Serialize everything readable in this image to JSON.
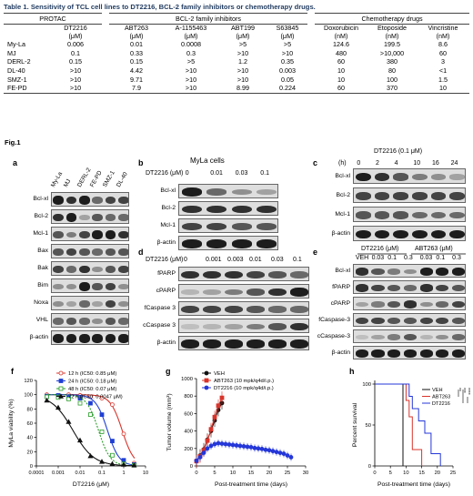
{
  "table": {
    "caption": "Table 1. Sensitivity of TCL cell lines to DT2216, BCL-2 family inhibitors or chemotherapy drugs.",
    "groups": [
      "PROTAC",
      "BCL-2 family inhibitors",
      "Chemotherapy drugs"
    ],
    "drugs": [
      "DT2216",
      "ABT263",
      "A-1155463",
      "ABT199",
      "S63845",
      "Doxorubicin",
      "Etoposide",
      "Vincristine"
    ],
    "units": [
      "(μM)",
      "(μM)",
      "(μM)",
      "(μM)",
      "(μM)",
      "(nM)",
      "(nM)",
      "(nM)"
    ],
    "rows": [
      {
        "cell": "My-La",
        "values": [
          "0.006",
          "0.01",
          "0.0008",
          ">5",
          ">5",
          "124.6",
          "199.5",
          "8.6"
        ]
      },
      {
        "cell": "MJ",
        "values": [
          "0.1",
          "0.33",
          "0.3",
          ">10",
          ">10",
          "480",
          ">10,000",
          "60"
        ]
      },
      {
        "cell": "DERL-2",
        "values": [
          "0.15",
          "0.15",
          ">5",
          "1.2",
          "0.35",
          "60",
          "380",
          "3"
        ]
      },
      {
        "cell": "DL-40",
        "values": [
          ">10",
          "4.42",
          ">10",
          ">10",
          "0.003",
          "10",
          "80",
          "<1"
        ]
      },
      {
        "cell": "SMZ-1",
        "values": [
          ">10",
          "9.71",
          ">10",
          ">10",
          "0.05",
          "10",
          "100",
          "1.5"
        ]
      },
      {
        "cell": "FE-PD",
        "values": [
          ">10",
          "7.9",
          ">10",
          "8.99",
          "0.224",
          "60",
          "370",
          "10"
        ]
      }
    ]
  },
  "figure": {
    "label": "Fig.1",
    "panel_a": {
      "letter": "a",
      "lanes": [
        "My-La",
        "MJ",
        "DERL-2",
        "FE-PD",
        "SMZ-1",
        "DL-40"
      ],
      "rows": [
        "Bcl-xl",
        "Bcl-2",
        "Mcl-1",
        "Bax",
        "Bak",
        "Bim",
        "Noxa",
        "VHL",
        "β-actin"
      ]
    },
    "panel_b": {
      "letter": "b",
      "title": "MyLa cells",
      "dose_label": "DT2216 (μM)",
      "doses": [
        "0",
        "0.01",
        "0.03",
        "0.1"
      ],
      "rows": [
        "Bcl-xl",
        "Bcl-2",
        "Mcl-1",
        "β-actin"
      ]
    },
    "panel_c": {
      "letter": "c",
      "title": "DT2216 (0.1 μM)",
      "time_unit": "(h)",
      "times": [
        "0",
        "2",
        "4",
        "10",
        "16",
        "24"
      ],
      "rows": [
        "Bcl-xl",
        "Bcl-2",
        "Mcl-1",
        "β-actin"
      ]
    },
    "panel_d": {
      "letter": "d",
      "dose_label": "DT2216 (μM)",
      "doses": [
        "0",
        "0.001",
        "0.003",
        "0.01",
        "0.03",
        "0.1"
      ],
      "rows": [
        "fPARP",
        "cPARP",
        "fCaspase 3",
        "cCaspase 3",
        "β-actin"
      ]
    },
    "panel_e": {
      "letter": "e",
      "group1": "DT2216 (μM)",
      "group2": "ABT263 (μM)",
      "lanes": [
        "VEH",
        "0.03",
        "0.1",
        "0.3",
        "0.03",
        "0.1",
        "0.3"
      ],
      "rows": [
        "Bcl-xl",
        "fPARP",
        "cPARP",
        "fCaspase-3",
        "cCaspase-3",
        "β-actin"
      ]
    }
  },
  "chart_data": [
    {
      "panel": "f",
      "type": "line",
      "xlabel": "DT2216 (μM)",
      "ylabel": "MyLa viability (%)",
      "x_scale": "log",
      "xlim": [
        0.0001,
        10
      ],
      "ylim": [
        0,
        120
      ],
      "xticks": [
        "0.0001",
        "0.001",
        "0.01",
        "0.1",
        "1",
        "10"
      ],
      "yticks": [
        "0",
        "20",
        "40",
        "60",
        "80",
        "100",
        "120"
      ],
      "legend_position": "top-right",
      "series": [
        {
          "name": "12 h (IC50: 0.85 μM)",
          "color": "#d9342b",
          "marker": "circle-open",
          "ic50": 0.85,
          "x": [
            0.0003,
            0.001,
            0.003,
            0.01,
            0.03,
            0.1,
            0.3,
            1,
            3
          ],
          "y": [
            100,
            99,
            100,
            99,
            97,
            95,
            86,
            45,
            4
          ]
        },
        {
          "name": "24 h (IC50: 0.18 μM)",
          "color": "#1f3fd4",
          "marker": "square-filled",
          "ic50": 0.18,
          "x": [
            0.0003,
            0.001,
            0.003,
            0.01,
            0.03,
            0.1,
            0.3,
            1,
            3
          ],
          "y": [
            98,
            99,
            97,
            95,
            88,
            72,
            35,
            8,
            2
          ]
        },
        {
          "name": "48 h (IC50: 0.07 μM)",
          "color": "#2a9d2a",
          "marker": "square-open",
          "ic50": 0.07,
          "x": [
            0.0003,
            0.001,
            0.003,
            0.01,
            0.03,
            0.1,
            0.3,
            1,
            3
          ],
          "y": [
            97,
            96,
            94,
            88,
            72,
            48,
            15,
            3,
            1
          ]
        },
        {
          "name": "72 h (IC50: 0.0047 μM)",
          "color": "#111111",
          "marker": "triangle-filled",
          "ic50": 0.0047,
          "x": [
            0.0003,
            0.001,
            0.003,
            0.01,
            0.03,
            0.1,
            0.3,
            1,
            3
          ],
          "y": [
            92,
            82,
            62,
            36,
            14,
            6,
            3,
            2,
            1
          ]
        }
      ]
    },
    {
      "panel": "g",
      "type": "line",
      "xlabel": "Post-treatment time (days)",
      "ylabel": "Tumor volume (mm³)",
      "xlim": [
        0,
        30
      ],
      "ylim": [
        0,
        1000
      ],
      "xticks": [
        "0",
        "5",
        "10",
        "15",
        "20",
        "25",
        "30"
      ],
      "yticks": [
        "0",
        "200",
        "400",
        "600",
        "800",
        "1000"
      ],
      "legend_position": "top-left",
      "series": [
        {
          "name": "VEH",
          "color": "#111111",
          "x": [
            0,
            1,
            2,
            3,
            4,
            5,
            6,
            7
          ],
          "y": [
            60,
            120,
            190,
            300,
            400,
            520,
            640,
            720
          ]
        },
        {
          "name": "ABT263 (10 mpk/q4d/i.p.)",
          "color": "#d9342b",
          "x": [
            0,
            1,
            2,
            3,
            4,
            5,
            6,
            7
          ],
          "y": [
            55,
            110,
            180,
            290,
            420,
            560,
            690,
            780
          ]
        },
        {
          "name": "DT2216 (10 mpk/q4d/i.p.)",
          "color": "#2437d8",
          "x": [
            0,
            1,
            2,
            3,
            4,
            5,
            6,
            7,
            8,
            9,
            10,
            11,
            12,
            13,
            14,
            15,
            16,
            17,
            18,
            19,
            20,
            21,
            22,
            23,
            24,
            25,
            26
          ],
          "y": [
            60,
            100,
            150,
            200,
            230,
            250,
            260,
            255,
            250,
            245,
            240,
            235,
            230,
            225,
            220,
            215,
            205,
            200,
            195,
            185,
            180,
            170,
            160,
            150,
            140,
            120,
            100
          ]
        }
      ]
    },
    {
      "panel": "h",
      "type": "line",
      "xlabel": "Post-treatment time (days)",
      "ylabel": "Percent survival",
      "xlim": [
        0,
        25
      ],
      "ylim": [
        0,
        100
      ],
      "xticks": [
        "0",
        "5",
        "10",
        "15",
        "20",
        "25"
      ],
      "yticks": [
        "0",
        "50",
        "100"
      ],
      "legend_position": "top-right",
      "significance": [
        "**",
        "***",
        "****"
      ],
      "series": [
        {
          "name": "VEH",
          "color": "#111111",
          "x": [
            0,
            9,
            9
          ],
          "y": [
            100,
            100,
            0
          ]
        },
        {
          "name": "ABT263",
          "color": "#d9342b",
          "x": [
            0,
            10,
            10,
            11,
            11,
            12,
            12,
            15,
            15
          ],
          "y": [
            100,
            100,
            80,
            80,
            60,
            60,
            20,
            20,
            0
          ]
        },
        {
          "name": "DT2216",
          "color": "#2437d8",
          "x": [
            0,
            11,
            11,
            12,
            12,
            14,
            14,
            16,
            16,
            18,
            18,
            21,
            21
          ],
          "y": [
            100,
            100,
            85,
            85,
            70,
            70,
            55,
            55,
            40,
            40,
            15,
            15,
            0
          ]
        }
      ]
    }
  ]
}
